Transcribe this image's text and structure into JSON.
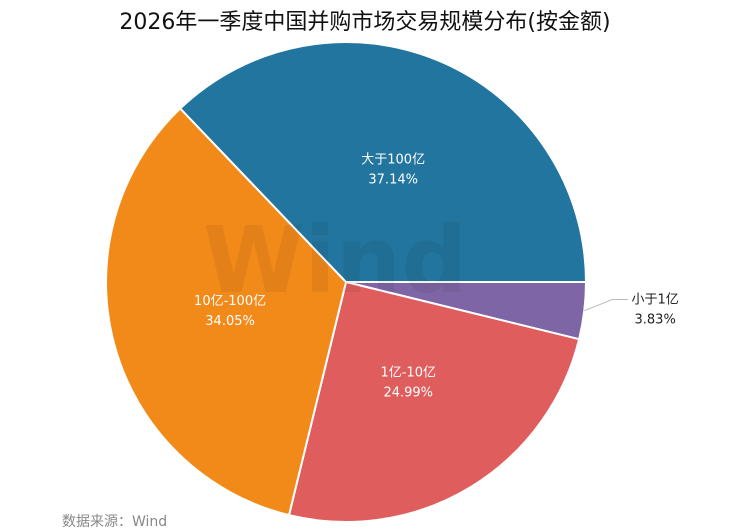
{
  "chart_data": {
    "type": "pie",
    "title": "2026年一季度中国并购市场交易规模分布(按金额)",
    "categories": [
      "大于100亿",
      "10亿-100亿",
      "1亿-10亿",
      "小于1亿"
    ],
    "values": [
      37.14,
      34.05,
      24.99,
      3.83
    ],
    "value_labels": [
      "37.14%",
      "34.05%",
      "24.99%",
      "3.83%"
    ],
    "colors": [
      "#22759e",
      "#f28a1a",
      "#e05d5d",
      "#7e65a5"
    ],
    "start_angle": "east, counterclockwise",
    "legend": "none"
  },
  "watermark": "Wind",
  "source": "数据来源：Wind"
}
